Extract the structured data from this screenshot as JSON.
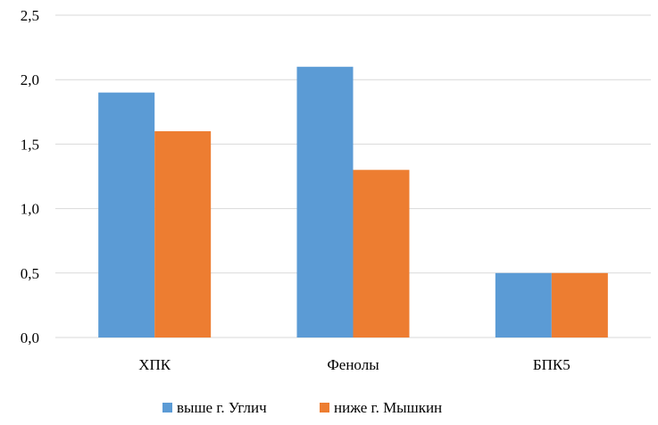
{
  "chart_data": {
    "type": "bar",
    "categories": [
      "ХПК",
      "Фенолы",
      "БПК5"
    ],
    "series": [
      {
        "name": "выше г. Углич",
        "values": [
          1.9,
          2.1,
          0.5
        ],
        "color": "#5B9BD5"
      },
      {
        "name": "ниже г. Мышкин",
        "values": [
          1.6,
          1.3,
          0.5
        ],
        "color": "#ED7D31"
      }
    ],
    "ylim": [
      0,
      2.5
    ],
    "yticks": [
      "0,0",
      "0,5",
      "1,0",
      "1,5",
      "2,0",
      "2,5"
    ],
    "grid": true,
    "gridColor": "#d9d9d9",
    "legend": "bottom"
  }
}
